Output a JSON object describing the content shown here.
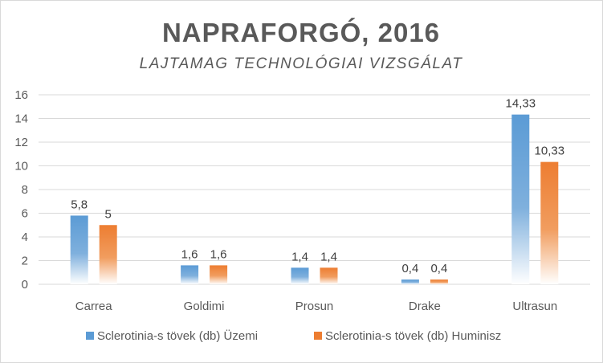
{
  "chart_data": {
    "type": "bar",
    "title": "NAPRAFORGÓ, 2016",
    "subtitle": "LAJTAMAG TECHNOLÓGIAI VIZSGÁLAT",
    "categories": [
      "Carrea",
      "Goldimi",
      "Prosun",
      "Drake",
      "Ultrasun"
    ],
    "series": [
      {
        "name": "Sclerotinia-s tövek (db) Üzemi",
        "values": [
          5.8,
          1.6,
          1.4,
          0.4,
          14.33
        ],
        "labels": [
          "5,8",
          "1,6",
          "1,4",
          "0,4",
          "14,33"
        ],
        "color": "#5b9bd5"
      },
      {
        "name": "Sclerotinia-s tövek (db) Huminisz",
        "values": [
          5,
          1.6,
          1.4,
          0.4,
          10.33
        ],
        "labels": [
          "5",
          "1,6",
          "1,4",
          "0,4",
          "10,33"
        ],
        "color": "#ed7d31"
      }
    ],
    "ylim": [
      0,
      16
    ],
    "yticks": [
      "0",
      "2",
      "4",
      "6",
      "8",
      "10",
      "12",
      "14",
      "16"
    ],
    "grid": true,
    "legend_position": "bottom",
    "fill": "vertical gradient fading to white at base"
  }
}
